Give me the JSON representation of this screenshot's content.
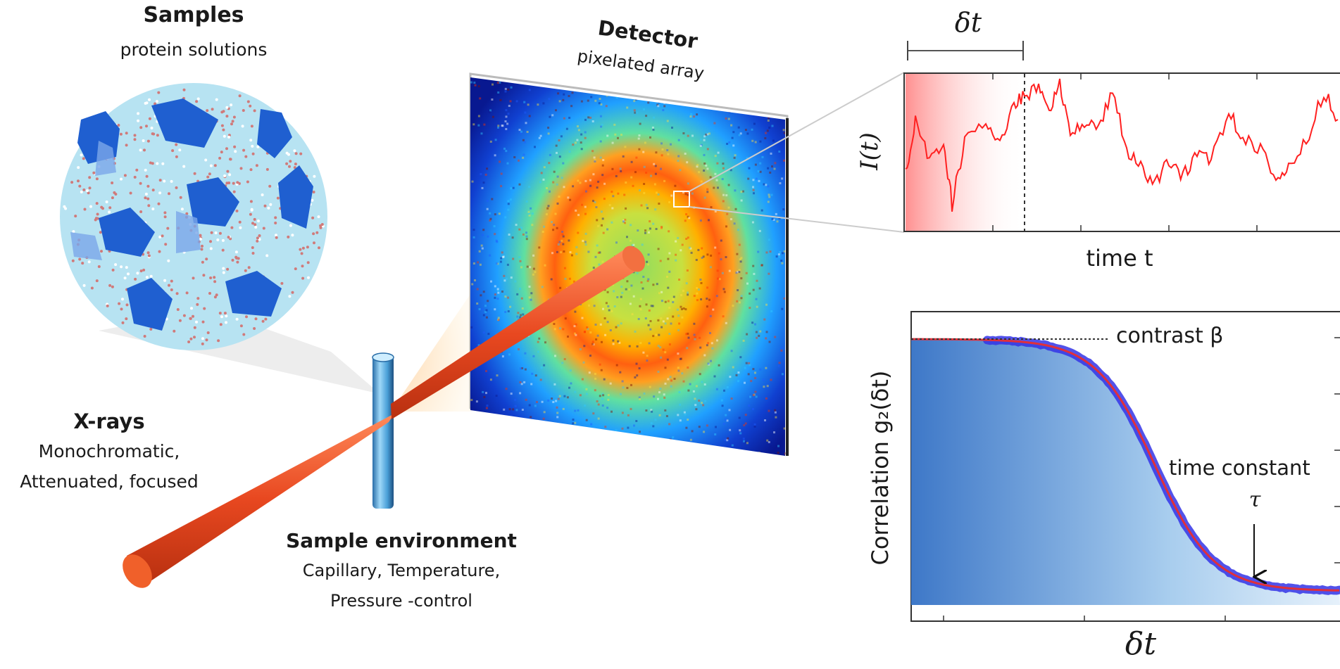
{
  "samples": {
    "title": "Samples",
    "subtitle": "protein solutions"
  },
  "detector": {
    "title": "Detector",
    "subtitle": "pixelated array"
  },
  "xrays": {
    "title": "X-rays",
    "line1": "Monochromatic,",
    "line2": "Attenuated, focused"
  },
  "environment": {
    "title": "Sample environment",
    "line1": "Capillary, Temperature,",
    "line2": "Pressure -control"
  },
  "intensity_plot": {
    "delta_label": "δt",
    "ylabel": "I(t)",
    "xlabel": "time t"
  },
  "correlation_plot": {
    "ylabel": "Correlation  g₂(δt)",
    "xlabel": "δt",
    "contrast_label": "contrast β",
    "time_constant_label": "time constant",
    "tau_label": "τ"
  },
  "colors": {
    "beam": "#e8502a",
    "trace": "#ff2020",
    "fit": "#e0303a",
    "points": "#3a3ae0",
    "protein": "#2060d0"
  }
}
